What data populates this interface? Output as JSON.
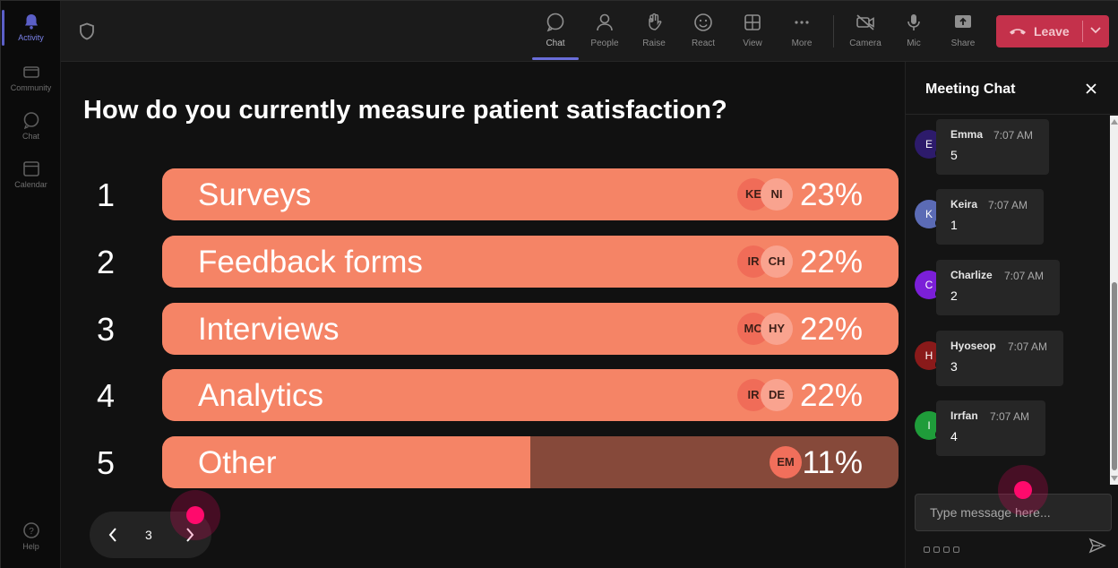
{
  "rail": {
    "items": [
      {
        "label": "Activity"
      },
      {
        "label": "Community"
      },
      {
        "label": "Chat"
      },
      {
        "label": "Calendar"
      },
      {
        "label": "Help"
      }
    ]
  },
  "toolbar": {
    "chat": "Chat",
    "people": "People",
    "raise": "Raise",
    "react": "React",
    "view": "View",
    "more": "More",
    "camera": "Camera",
    "mic": "Mic",
    "share": "Share",
    "leave": "Leave"
  },
  "poll": {
    "question": "How do you currently measure patient satisfaction?",
    "options": [
      {
        "num": "1",
        "label": "Surveys",
        "percent": "23%",
        "fill": 1.0,
        "avatars": [
          "KE",
          "NI"
        ]
      },
      {
        "num": "2",
        "label": "Feedback forms",
        "percent": "22%",
        "fill": 1.0,
        "avatars": [
          "IR",
          "CH"
        ]
      },
      {
        "num": "3",
        "label": "Interviews",
        "percent": "22%",
        "fill": 1.0,
        "avatars": [
          "MO",
          "HY"
        ]
      },
      {
        "num": "4",
        "label": "Analytics",
        "percent": "22%",
        "fill": 1.0,
        "avatars": [
          "IR",
          "DE"
        ]
      },
      {
        "num": "5",
        "label": "Other",
        "percent": "11%",
        "fill": 0.5,
        "avatars": [
          "EM"
        ]
      }
    ]
  },
  "pager": {
    "page": "3"
  },
  "chat": {
    "title": "Meeting Chat",
    "messages": [
      {
        "initial": "E",
        "name": "Emma",
        "time": "7:07 AM",
        "text": "5",
        "color": "#2d1b6b"
      },
      {
        "initial": "K",
        "name": "Keira",
        "time": "7:07 AM",
        "text": "1",
        "color": "#5b6bb5"
      },
      {
        "initial": "C",
        "name": "Charlize",
        "time": "7:07 AM",
        "text": "2",
        "color": "#7b1fd8"
      },
      {
        "initial": "H",
        "name": "Hyoseop",
        "time": "7:07 AM",
        "text": "3",
        "color": "#8a1a1a"
      },
      {
        "initial": "I",
        "name": "Irrfan",
        "time": "7:07 AM",
        "text": "4",
        "color": "#1f9c3a"
      }
    ],
    "placeholder": "Type message here..."
  },
  "colors": {
    "bar_fill": "#f58466",
    "bar_track": "#86493a",
    "leave": "#c4314b",
    "accent": "#5b5fc7",
    "cursor": "#ff0a6c"
  }
}
